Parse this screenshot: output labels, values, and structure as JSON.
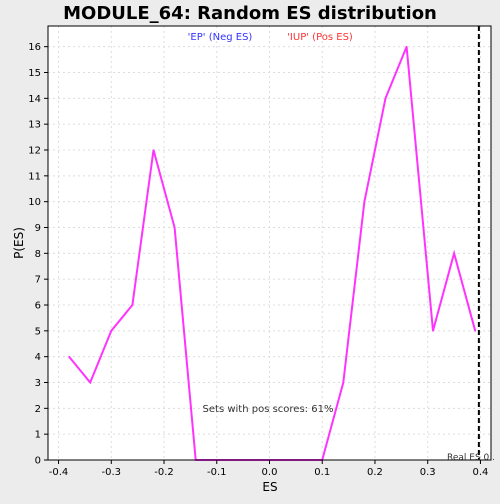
{
  "chart_data": {
    "type": "line",
    "title": "MODULE_64: Random ES distribution",
    "xlabel": "ES",
    "ylabel": "P(ES)",
    "xlim": [
      -0.42,
      0.42
    ],
    "ylim": [
      0,
      16.8
    ],
    "x_ticks": [
      -0.4,
      -0.3,
      -0.2,
      -0.1,
      0.0,
      0.1,
      0.2,
      0.3,
      0.4
    ],
    "x_tick_labels": [
      "-0.4",
      "-0.3",
      "-0.2",
      "-0.1",
      "0.0",
      "0.1",
      "0.2",
      "0.3",
      "0.4"
    ],
    "y_ticks": [
      0,
      1,
      2,
      3,
      4,
      5,
      6,
      7,
      8,
      9,
      10,
      11,
      12,
      13,
      14,
      15,
      16
    ],
    "y_tick_labels": [
      "0",
      "1",
      "2",
      "3",
      "4",
      "5",
      "6",
      "7",
      "8",
      "9",
      "10",
      "11",
      "12",
      "13",
      "14",
      "15",
      "16"
    ],
    "grid": true,
    "series": [
      {
        "color": "#ff33ff",
        "x": [
          -0.38,
          -0.34,
          -0.3,
          -0.26,
          -0.22,
          -0.18,
          -0.14,
          -0.1,
          -0.06,
          -0.02,
          0.02,
          0.06,
          0.1,
          0.14,
          0.18,
          0.22,
          0.26,
          0.31,
          0.35,
          0.39
        ],
        "y": [
          4,
          3,
          5,
          6,
          12,
          9,
          0,
          0,
          0,
          0,
          0,
          0,
          0,
          3,
          10,
          14,
          16,
          5,
          8,
          5
        ]
      }
    ],
    "reference_line": {
      "x": 0.397,
      "color": "#000000",
      "style": "dashed"
    },
    "legend": [
      {
        "label": "'EP' (Neg ES)",
        "color": "#3333ff"
      },
      {
        "label": "'IUP' (Pos ES)",
        "color": "#ff3333"
      }
    ],
    "annotations": {
      "sets_text": "Sets with pos scores: 61%",
      "real_es_text": "Real ES 0.."
    },
    "colors": {
      "background": "#ececec",
      "plot_bg": "#ffffff",
      "grid": "#dcdcdc",
      "axis": "#000000"
    }
  }
}
